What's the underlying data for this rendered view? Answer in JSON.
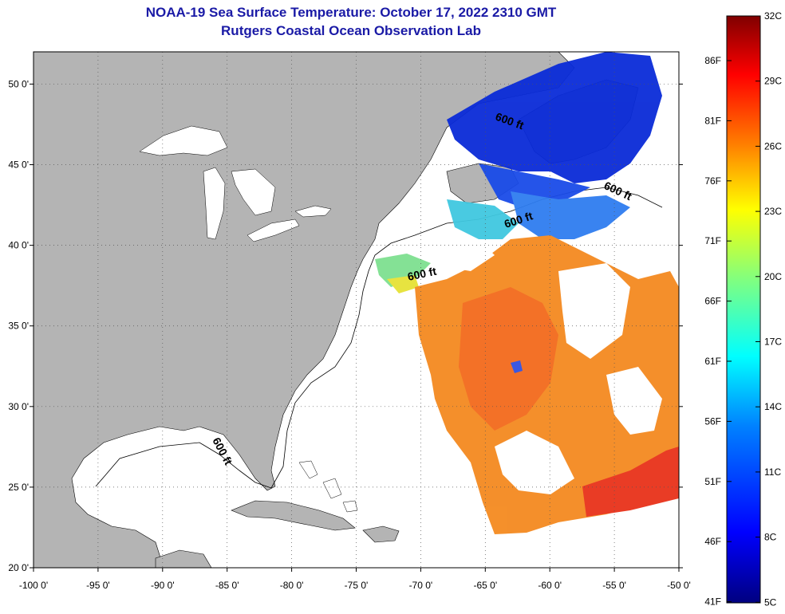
{
  "title": {
    "line1": "NOAA-19 Sea Surface Temperature:  October 17, 2022 2310 GMT",
    "line2": "Rutgers Coastal Ocean Observation Lab"
  },
  "map": {
    "lon_range": [
      -100,
      -50
    ],
    "lat_range": [
      20,
      52
    ],
    "lon_ticks": [
      "-100 0'",
      "-95 0'",
      "-90 0'",
      "-85 0'",
      "-80 0'",
      "-75 0'",
      "-70 0'",
      "-65 0'",
      "-60 0'",
      "-55 0'",
      "-50 0'"
    ],
    "lat_ticks": [
      "50 0'",
      "45 0'",
      "40 0'",
      "35 0'",
      "30 0'",
      "25 0'",
      "20 0'"
    ],
    "grid": "dotted",
    "land_color": "#b4b4b4",
    "contour_label": "600 ft"
  },
  "colorbar": {
    "fahrenheit": [
      "86F",
      "81F",
      "76F",
      "71F",
      "66F",
      "61F",
      "56F",
      "51F",
      "46F",
      "41F"
    ],
    "celsius": [
      "32C",
      "29C",
      "26C",
      "23C",
      "20C",
      "17C",
      "14C",
      "11C",
      "8C",
      "5C"
    ],
    "colors": [
      "#000080",
      "#0000ff",
      "#0080ff",
      "#00ffff",
      "#80ff80",
      "#ffff00",
      "#ff8000",
      "#ff0000",
      "#800000"
    ]
  }
}
